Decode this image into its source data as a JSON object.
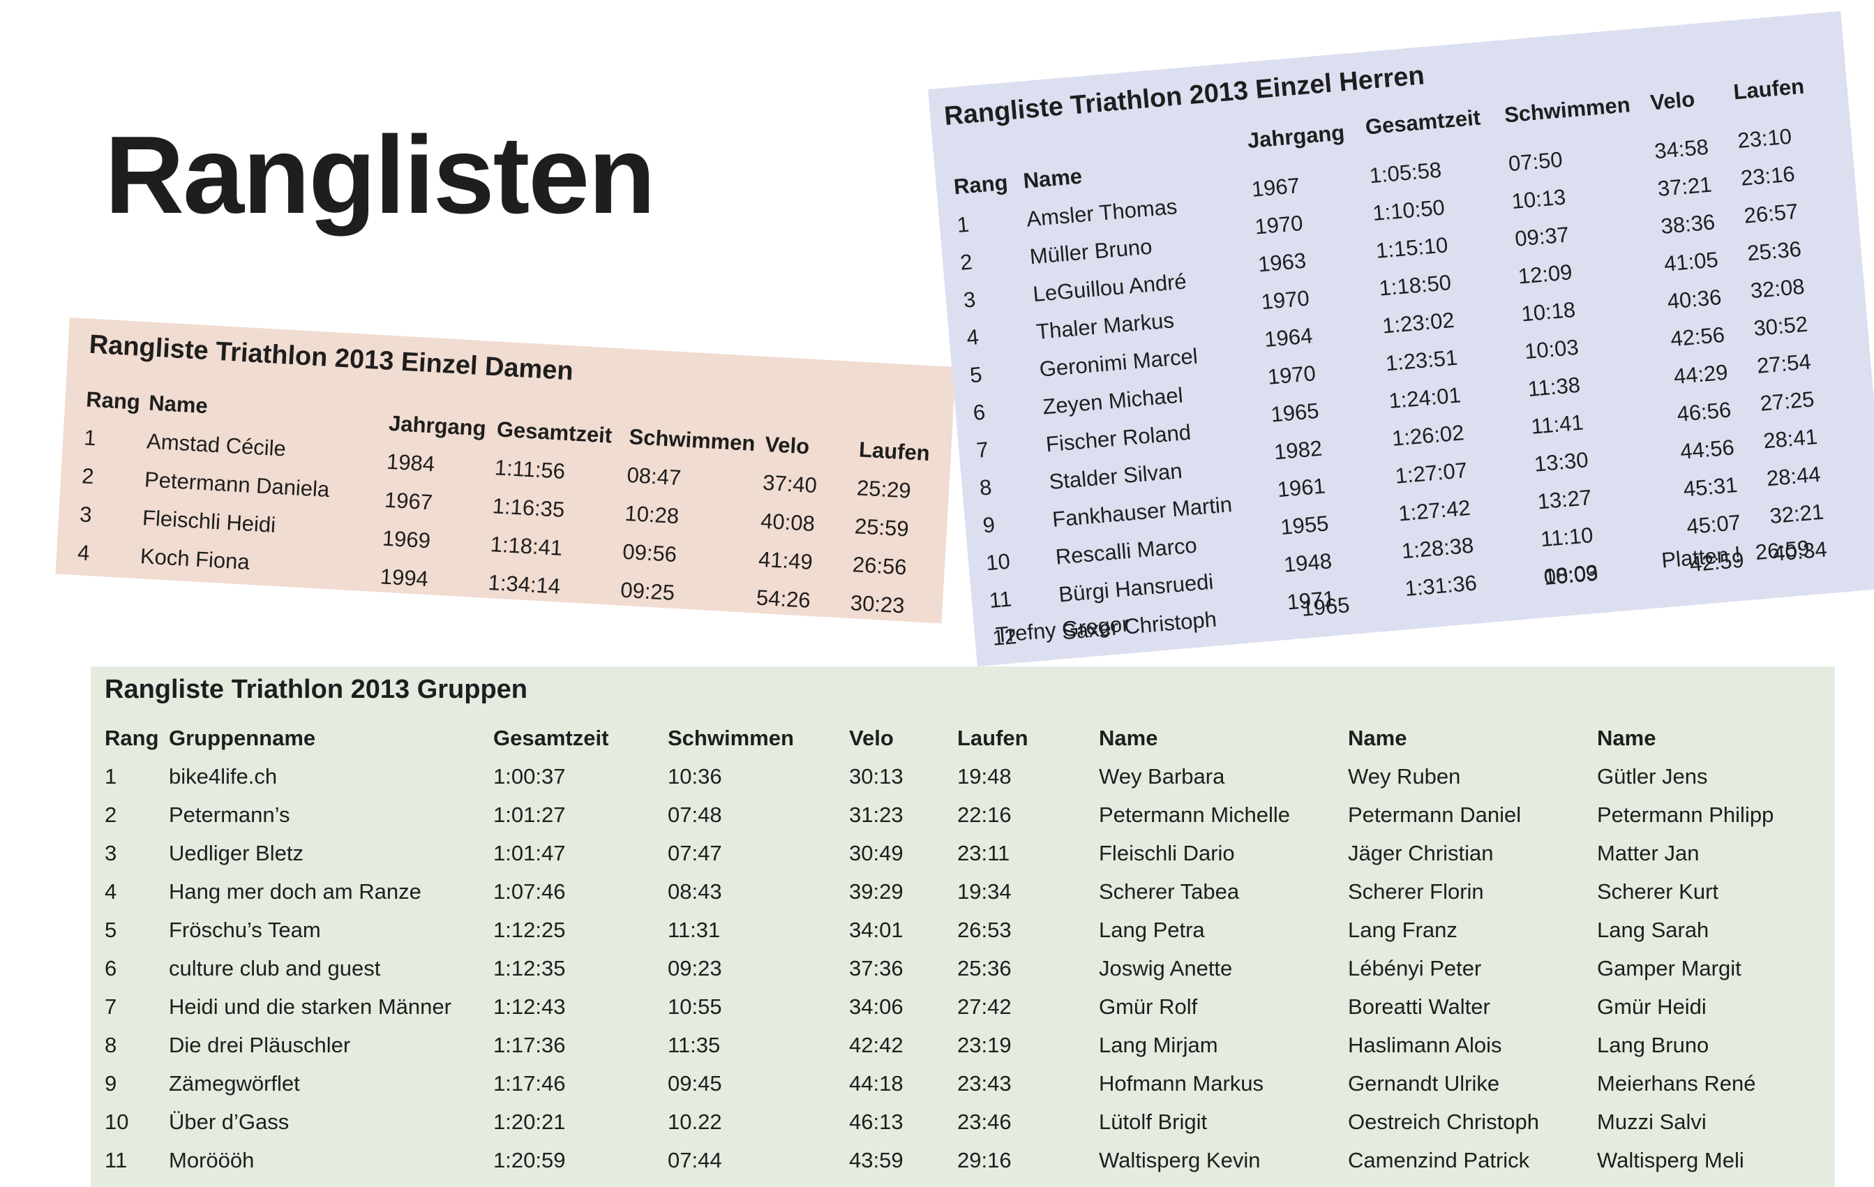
{
  "page": {
    "title": "Ranglisten"
  },
  "damen": {
    "title": "Rangliste Triathlon 2013 Einzel Damen",
    "headers": {
      "rang": "Rang",
      "name": "Name",
      "jahrgang": "Jahrgang",
      "gesamtzeit": "Gesamtzeit",
      "schwimmen": "Schwimmen",
      "velo": "Velo",
      "laufen": "Laufen"
    },
    "rows": [
      {
        "rang": "1",
        "name": "Amstad Cécile",
        "jahrgang": "1984",
        "gesamtzeit": "1:11:56",
        "schwimmen": "08:47",
        "velo": "37:40",
        "laufen": "25:29"
      },
      {
        "rang": "2",
        "name": "Petermann Daniela",
        "jahrgang": "1967",
        "gesamtzeit": "1:16:35",
        "schwimmen": "10:28",
        "velo": "40:08",
        "laufen": "25:59"
      },
      {
        "rang": "3",
        "name": "Fleischli Heidi",
        "jahrgang": "1969",
        "gesamtzeit": "1:18:41",
        "schwimmen": "09:56",
        "velo": "41:49",
        "laufen": "26:56"
      },
      {
        "rang": "4",
        "name": "Koch Fiona",
        "jahrgang": "1994",
        "gesamtzeit": "1:34:14",
        "schwimmen": "09:25",
        "velo": "54:26",
        "laufen": "30:23"
      }
    ]
  },
  "herren": {
    "title": "Rangliste Triathlon 2013 Einzel Herren",
    "headers": {
      "rang": "Rang",
      "name": "Name",
      "jahrgang": "Jahrgang",
      "gesamtzeit": "Gesamtzeit",
      "schwimmen": "Schwimmen",
      "velo": "Velo",
      "laufen": "Laufen"
    },
    "rows": [
      {
        "rang": "1",
        "name": "Amsler Thomas",
        "jahrgang": "1967",
        "gesamtzeit": "1:05:58",
        "schwimmen": "07:50",
        "velo": "34:58",
        "laufen": "23:10"
      },
      {
        "rang": "2",
        "name": "Müller Bruno",
        "jahrgang": "1970",
        "gesamtzeit": "1:10:50",
        "schwimmen": "10:13",
        "velo": "37:21",
        "laufen": "23:16"
      },
      {
        "rang": "3",
        "name": "LeGuillou André",
        "jahrgang": "1963",
        "gesamtzeit": "1:15:10",
        "schwimmen": "09:37",
        "velo": "38:36",
        "laufen": "26:57"
      },
      {
        "rang": "4",
        "name": "Thaler Markus",
        "jahrgang": "1970",
        "gesamtzeit": "1:18:50",
        "schwimmen": "12:09",
        "velo": "41:05",
        "laufen": "25:36"
      },
      {
        "rang": "5",
        "name": "Geronimi Marcel",
        "jahrgang": "1964",
        "gesamtzeit": "1:23:02",
        "schwimmen": "10:18",
        "velo": "40:36",
        "laufen": "32:08"
      },
      {
        "rang": "6",
        "name": "Zeyen Michael",
        "jahrgang": "1970",
        "gesamtzeit": "1:23:51",
        "schwimmen": "10:03",
        "velo": "42:56",
        "laufen": "30:52"
      },
      {
        "rang": "7",
        "name": "Fischer Roland",
        "jahrgang": "1965",
        "gesamtzeit": "1:24:01",
        "schwimmen": "11:38",
        "velo": "44:29",
        "laufen": "27:54"
      },
      {
        "rang": "8",
        "name": "Stalder Silvan",
        "jahrgang": "1982",
        "gesamtzeit": "1:26:02",
        "schwimmen": "11:41",
        "velo": "46:56",
        "laufen": "27:25"
      },
      {
        "rang": "9",
        "name": "Fankhauser Martin",
        "jahrgang": "1961",
        "gesamtzeit": "1:27:07",
        "schwimmen": "13:30",
        "velo": "44:56",
        "laufen": "28:41"
      },
      {
        "rang": "10",
        "name": "Rescalli Marco",
        "jahrgang": "1955",
        "gesamtzeit": "1:27:42",
        "schwimmen": "13:27",
        "velo": "45:31",
        "laufen": "28:44"
      },
      {
        "rang": "11",
        "name": "Bürgi Hansruedi",
        "jahrgang": "1948",
        "gesamtzeit": "1:28:38",
        "schwimmen": "11:10",
        "velo": "45:07",
        "laufen": "32:21"
      },
      {
        "rang": "12",
        "name": "Saxer Christoph",
        "jahrgang": "1971",
        "gesamtzeit": "1:31:36",
        "schwimmen": "08:03",
        "velo": "42:59",
        "laufen": "40:34"
      }
    ],
    "extra": {
      "name": "Trefny  Gregor",
      "jahrgang": "1965",
      "schwimmen": "10:09",
      "note": "Platten !",
      "laufen": "26:59"
    }
  },
  "gruppen": {
    "title": "Rangliste Triathlon 2013 Gruppen",
    "headers": {
      "rang": "Rang",
      "gruppenname": "Gruppenname",
      "gesamtzeit": "Gesamtzeit",
      "schwimmen": "Schwimmen",
      "velo": "Velo",
      "laufen": "Laufen",
      "name1": "Name",
      "name2": "Name",
      "name3": "Name"
    },
    "rows": [
      {
        "rang": "1",
        "gruppenname": "bike4life.ch",
        "gesamtzeit": "1:00:37",
        "schwimmen": "10:36",
        "velo": "30:13",
        "laufen": "19:48",
        "name1": "Wey Barbara",
        "name2": "Wey Ruben",
        "name3": "Gütler Jens"
      },
      {
        "rang": "2",
        "gruppenname": "Petermann’s",
        "gesamtzeit": "1:01:27",
        "schwimmen": "07:48",
        "velo": "31:23",
        "laufen": "22:16",
        "name1": "Petermann Michelle",
        "name2": "Petermann Daniel",
        "name3": "Petermann Philipp"
      },
      {
        "rang": "3",
        "gruppenname": "Uedliger Bletz",
        "gesamtzeit": "1:01:47",
        "schwimmen": "07:47",
        "velo": "30:49",
        "laufen": "23:11",
        "name1": "Fleischli Dario",
        "name2": "Jäger Christian",
        "name3": "Matter Jan"
      },
      {
        "rang": "4",
        "gruppenname": "Hang mer doch am Ranze",
        "gesamtzeit": "1:07:46",
        "schwimmen": "08:43",
        "velo": "39:29",
        "laufen": "19:34",
        "name1": "Scherer Tabea",
        "name2": "Scherer Florin",
        "name3": "Scherer Kurt"
      },
      {
        "rang": "5",
        "gruppenname": "Fröschu’s Team",
        "gesamtzeit": "1:12:25",
        "schwimmen": "11:31",
        "velo": "34:01",
        "laufen": "26:53",
        "name1": "Lang Petra",
        "name2": "Lang Franz",
        "name3": "Lang Sarah"
      },
      {
        "rang": "6",
        "gruppenname": "culture club and guest",
        "gesamtzeit": "1:12:35",
        "schwimmen": "09:23",
        "velo": "37:36",
        "laufen": "25:36",
        "name1": "Joswig Anette",
        "name2": "Lébényi Peter",
        "name3": "Gamper Margit"
      },
      {
        "rang": "7",
        "gruppenname": "Heidi und die starken Männer",
        "gesamtzeit": "1:12:43",
        "schwimmen": "10:55",
        "velo": "34:06",
        "laufen": "27:42",
        "name1": "Gmür Rolf",
        "name2": "Boreatti Walter",
        "name3": "Gmür Heidi"
      },
      {
        "rang": "8",
        "gruppenname": "Die drei Pläuschler",
        "gesamtzeit": "1:17:36",
        "schwimmen": "11:35",
        "velo": "42:42",
        "laufen": "23:19",
        "name1": "Lang  Mirjam",
        "name2": "Haslimann  Alois",
        "name3": "Lang  Bruno"
      },
      {
        "rang": "9",
        "gruppenname": "Zämegwörflet",
        "gesamtzeit": "1:17:46",
        "schwimmen": "09:45",
        "velo": "44:18",
        "laufen": "23:43",
        "name1": "Hofmann Markus",
        "name2": "Gernandt Ulrike",
        "name3": "Meierhans René"
      },
      {
        "rang": "10",
        "gruppenname": "Über d’Gass",
        "gesamtzeit": "1:20:21",
        "schwimmen": "10.22",
        "velo": "46:13",
        "laufen": "23:46",
        "name1": "Lütolf Brigit",
        "name2": "Oestreich Christoph",
        "name3": "Muzzi Salvi"
      },
      {
        "rang": "11",
        "gruppenname": "Moröööh",
        "gesamtzeit": "1:20:59",
        "schwimmen": "07:44",
        "velo": "43:59",
        "laufen": "29:16",
        "name1": "Waltisperg Kevin",
        "name2": "Camenzind Patrick",
        "name3": "Waltisperg Meli"
      }
    ]
  }
}
